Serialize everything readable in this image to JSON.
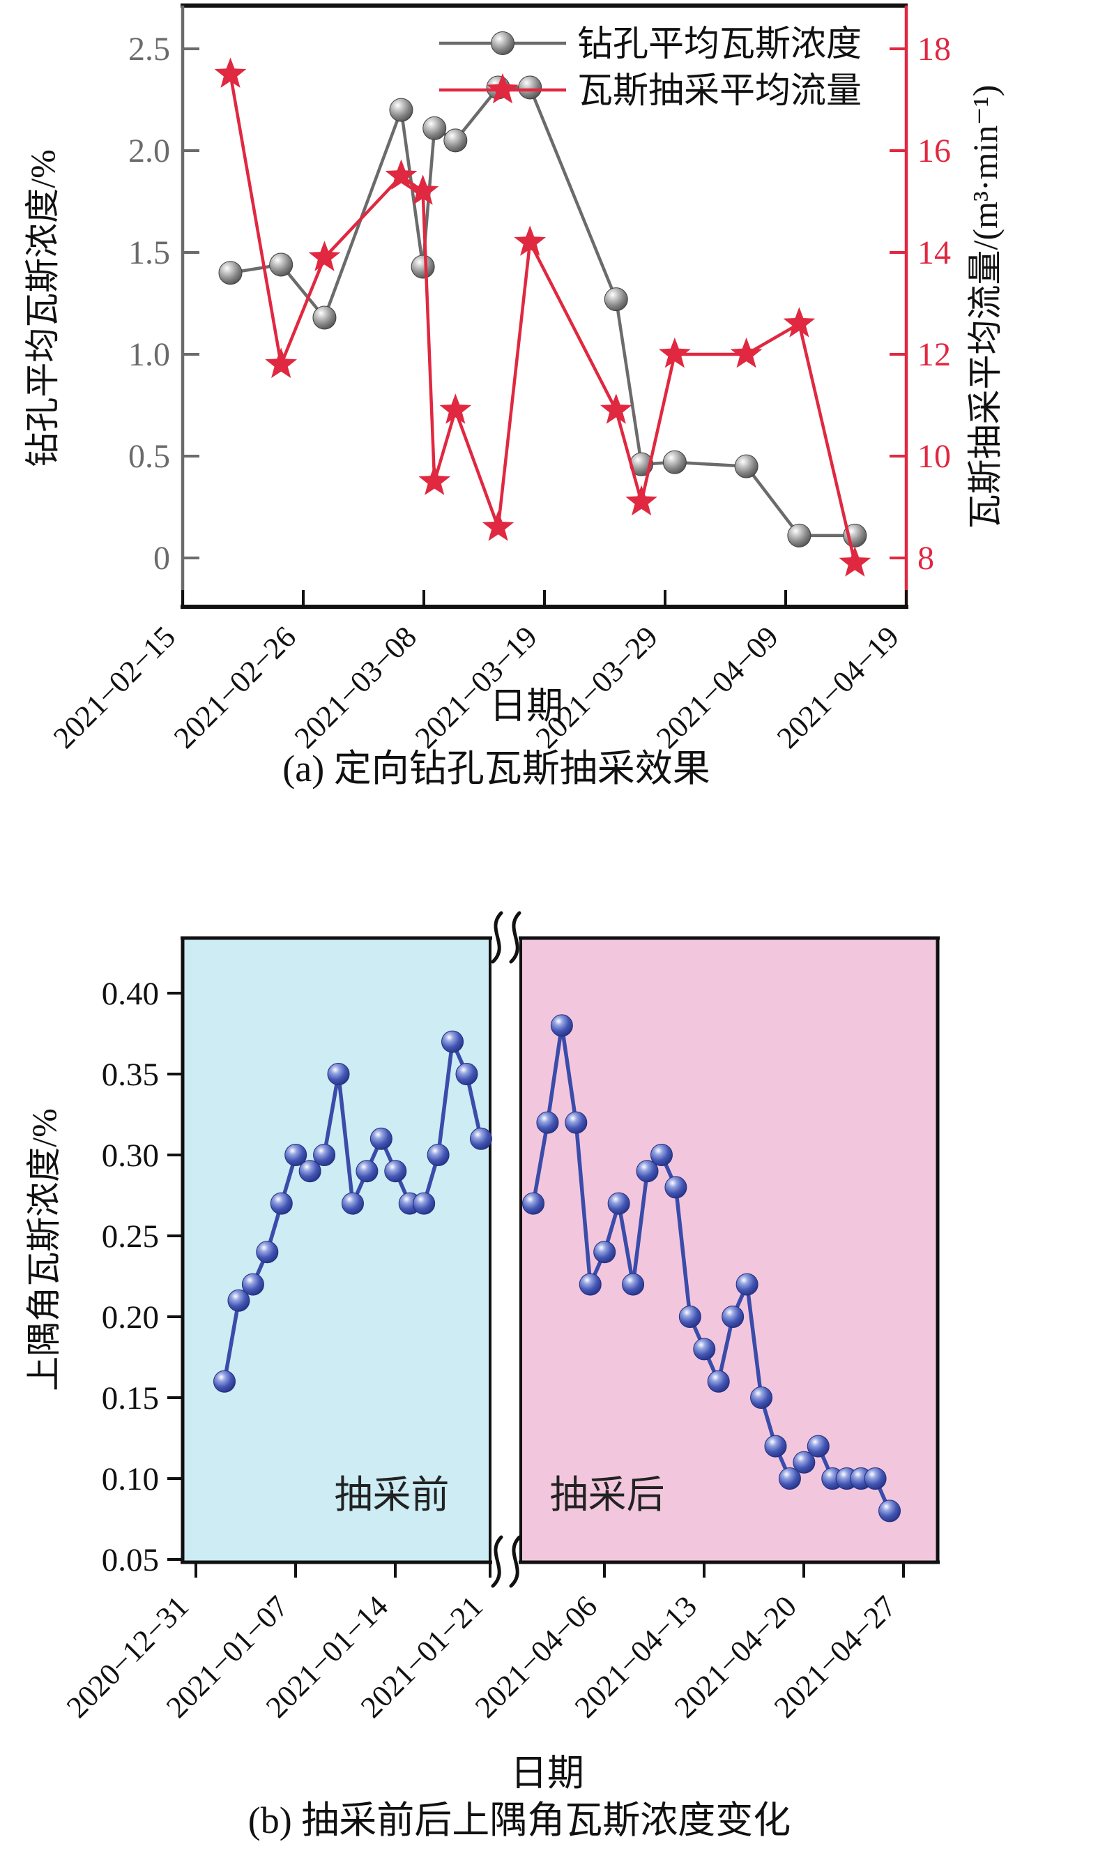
{
  "figure_caption_a": "(a) 定向钻孔瓦斯抽采效果",
  "figure_caption_b": "(b) 抽采前后上隅角瓦斯浓度变化",
  "colors": {
    "gray_series": "#6b6b6b",
    "red_series": "#e02840",
    "blue_series": "#3a4caa",
    "before_bg": "#cdecf4",
    "after_bg": "#f2c7dd",
    "axis_black": "#1a1a1a",
    "left_axis_gray": "#6b6b6b"
  },
  "chart_a": {
    "caption": "(a) 定向钻孔瓦斯抽采效果",
    "xlabel": "日期",
    "ylabel_left": "钻孔平均瓦斯浓度/%",
    "ylabel_right": "瓦斯抽采平均流量/(m³·min⁻¹)",
    "legend": [
      {
        "label": "钻孔平均瓦斯浓度",
        "marker": "circle-icon",
        "color": "#6b6b6b"
      },
      {
        "label": "瓦斯抽采平均流量",
        "marker": "star-icon",
        "color": "#e02840"
      }
    ],
    "x_tick_labels": [
      "2021−02−15",
      "2021−02−26",
      "2021−03−08",
      "2021−03−19",
      "2021−03−29",
      "2021−04−09",
      "2021−04−19"
    ],
    "left_axis": {
      "tick_labels": [
        "2.5",
        "2.0",
        "1.5",
        "1.0",
        "0.5",
        "0"
      ],
      "ticks": [
        2.5,
        2.0,
        1.5,
        1.0,
        0.5,
        0
      ]
    },
    "right_axis": {
      "tick_labels": [
        "18",
        "16",
        "14",
        "12",
        "10",
        "8"
      ],
      "ticks": [
        18,
        16,
        14,
        12,
        10,
        8
      ]
    }
  },
  "chart_b": {
    "caption": "(b) 抽采前后上隅角瓦斯浓度变化",
    "xlabel": "日期",
    "ylabel": "上隅角瓦斯浓度/%",
    "y_tick_labels": [
      "0.40",
      "0.35",
      "0.30",
      "0.25",
      "0.20",
      "0.15",
      "0.10",
      "0.05"
    ],
    "y_ticks": [
      0.4,
      0.35,
      0.3,
      0.25,
      0.2,
      0.15,
      0.1,
      0.05
    ],
    "regions": [
      {
        "label": "抽采前",
        "color": "#cdecf4"
      },
      {
        "label": "抽采后",
        "color": "#f2c7dd"
      }
    ]
  },
  "chart_data": [
    {
      "id": "a",
      "type": "line",
      "title": "(a) 定向钻孔瓦斯抽采效果",
      "xlabel": "日期",
      "ylabel": "钻孔平均瓦斯浓度/%",
      "ylabel2": "瓦斯抽采平均流量/(m³·min⁻¹)",
      "x_tick_labels": [
        "2021−02−15",
        "2021−02−26",
        "2021−03−08",
        "2021−03−19",
        "2021−03−29",
        "2021−04−09",
        "2021−04−19"
      ],
      "left_ylim": [
        -0.24,
        2.71
      ],
      "right_ylim": [
        7.04,
        18.82
      ],
      "grid": false,
      "legend_position": "upper right inside",
      "series": [
        {
          "name": "钻孔平均瓦斯浓度",
          "axis": "left",
          "marker": "sphere-circle",
          "color": "#6b6b6b",
          "x_frac": [
            0.066,
            0.136,
            0.196,
            0.302,
            0.332,
            0.348,
            0.377,
            0.436,
            0.48,
            0.599,
            0.634,
            0.68,
            0.779,
            0.852,
            0.929
          ],
          "values": [
            1.4,
            1.44,
            1.18,
            2.2,
            1.43,
            2.11,
            2.05,
            2.31,
            2.31,
            1.27,
            0.46,
            0.47,
            0.45,
            0.11,
            0.11
          ]
        },
        {
          "name": "瓦斯抽采平均流量",
          "axis": "right",
          "marker": "star",
          "color": "#e02840",
          "x_frac": [
            0.066,
            0.136,
            0.196,
            0.302,
            0.332,
            0.348,
            0.377,
            0.436,
            0.48,
            0.599,
            0.634,
            0.68,
            0.779,
            0.852,
            0.929
          ],
          "values": [
            17.5,
            11.8,
            13.9,
            15.5,
            15.2,
            9.5,
            10.9,
            8.6,
            14.2,
            10.9,
            9.1,
            12.0,
            12.0,
            12.6,
            7.9
          ]
        }
      ]
    },
    {
      "id": "b",
      "type": "line",
      "title": "(b) 抽采前后上隅角瓦斯浓度变化",
      "xlabel": "日期",
      "ylabel": "上隅角瓦斯浓度/%",
      "ylim": [
        0.05,
        0.434
      ],
      "grid": false,
      "axis_break": true,
      "segments": [
        {
          "name": "抽采前",
          "bg_color": "#cdecf4",
          "x_tick_labels": [
            "2020−12−31",
            "2021−01−07",
            "2021−01−14",
            "2021−01−21"
          ],
          "dates": [
            "2021-01-02",
            "2021-01-03",
            "2021-01-04",
            "2021-01-05",
            "2021-01-06",
            "2021-01-07",
            "2021-01-08",
            "2021-01-09",
            "2021-01-10",
            "2021-01-11",
            "2021-01-12",
            "2021-01-13",
            "2021-01-14",
            "2021-01-15",
            "2021-01-16",
            "2021-01-17",
            "2021-01-18",
            "2021-01-19",
            "2021-01-20"
          ],
          "values": [
            0.16,
            0.21,
            0.22,
            0.24,
            0.27,
            0.3,
            0.29,
            0.3,
            0.35,
            0.27,
            0.29,
            0.31,
            0.29,
            0.27,
            0.27,
            0.3,
            0.37,
            0.35,
            0.31
          ]
        },
        {
          "name": "抽采后",
          "bg_color": "#f2c7dd",
          "x_tick_labels": [
            "2021−04−06",
            "2021−04−13",
            "2021−04−20",
            "2021−04−27"
          ],
          "dates": [
            "2021-04-01",
            "2021-04-02",
            "2021-04-03",
            "2021-04-04",
            "2021-04-05",
            "2021-04-06",
            "2021-04-07",
            "2021-04-08",
            "2021-04-09",
            "2021-04-10",
            "2021-04-11",
            "2021-04-12",
            "2021-04-13",
            "2021-04-14",
            "2021-04-15",
            "2021-04-16",
            "2021-04-17",
            "2021-04-18",
            "2021-04-19",
            "2021-04-20",
            "2021-04-21",
            "2021-04-22",
            "2021-04-23",
            "2021-04-24",
            "2021-04-25",
            "2021-04-26"
          ],
          "values": [
            0.27,
            0.32,
            0.38,
            0.32,
            0.22,
            0.24,
            0.27,
            0.22,
            0.29,
            0.3,
            0.28,
            0.2,
            0.18,
            0.16,
            0.2,
            0.22,
            0.15,
            0.12,
            0.1,
            0.11,
            0.12,
            0.1,
            0.1,
            0.1,
            0.1,
            0.08
          ]
        }
      ],
      "series_color": "#3a4caa"
    }
  ]
}
